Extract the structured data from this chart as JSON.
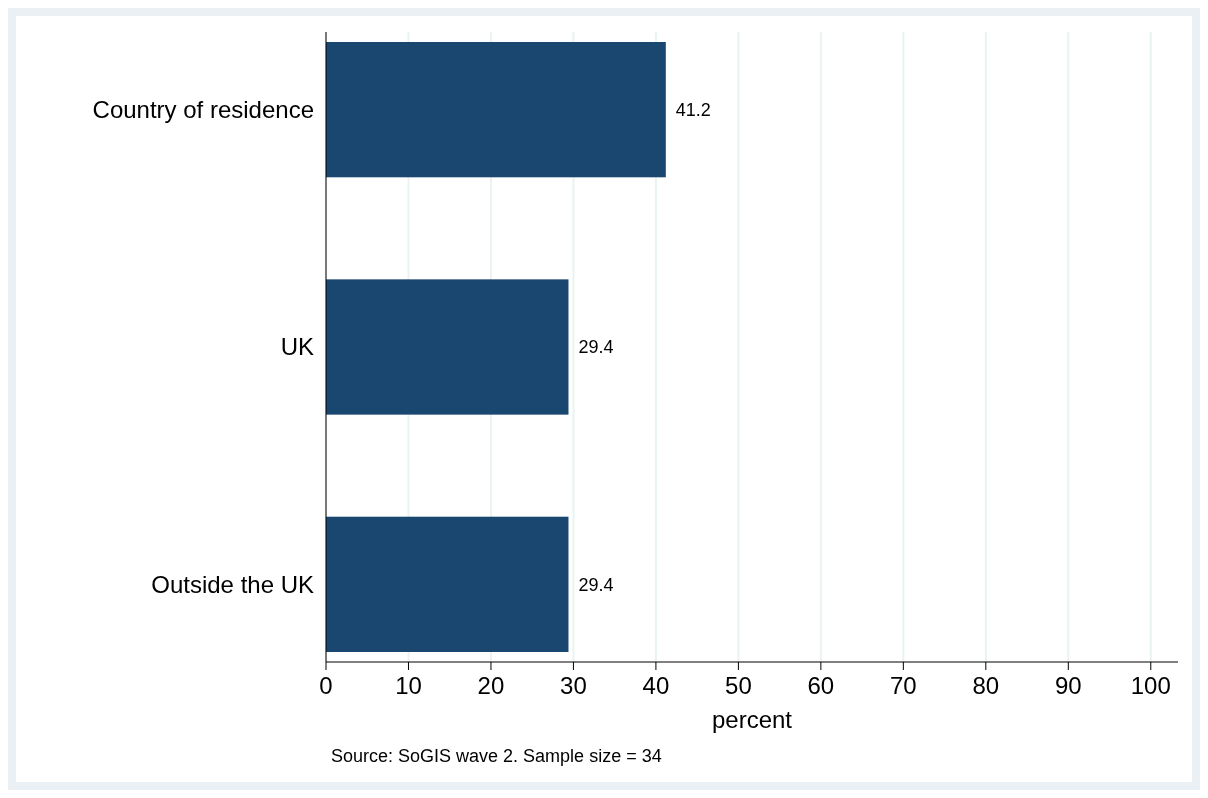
{
  "chart_data": {
    "type": "bar",
    "orientation": "horizontal",
    "xlabel": "percent",
    "categories": [
      "Country of residence",
      "UK",
      "Outside the UK"
    ],
    "values": [
      41.2,
      29.4,
      29.4
    ],
    "color": "#1a476f",
    "data_labels": true,
    "xlim": [
      0,
      103.3
    ],
    "xticks": [
      0,
      10,
      20,
      30,
      40,
      50,
      60,
      70,
      80,
      90,
      100
    ],
    "grid": "x",
    "annotations": [
      "Source: SoGIS wave 2. Sample size = 34"
    ]
  }
}
